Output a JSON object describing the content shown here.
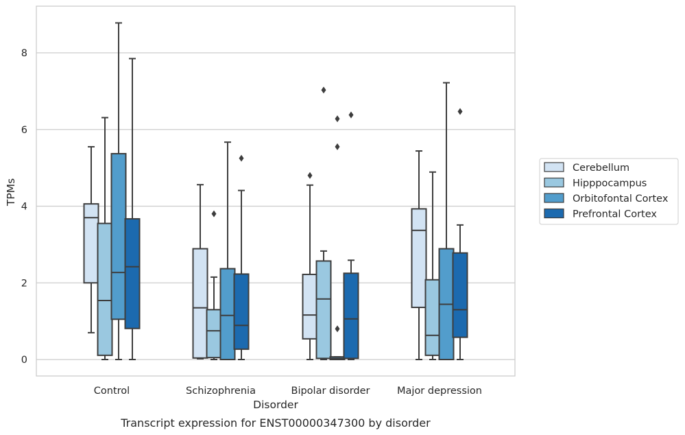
{
  "caption": "Transcript expression for ENST00000347300 by disorder",
  "chart_data": {
    "type": "box",
    "xlabel": "Disorder",
    "ylabel": "TPMs",
    "ylim": [
      -0.42,
      9.25
    ],
    "yticks": [
      0,
      2,
      4,
      6,
      8
    ],
    "grid": "horizontal",
    "legend_position": "right",
    "categories": [
      "Control",
      "Schizophrenia",
      "Bipolar disorder",
      "Major depression"
    ],
    "series": [
      {
        "name": "Cerebellum",
        "color": "#d2e3f3",
        "boxes": [
          {
            "min": 0.7,
            "q1": 2.0,
            "median": 3.7,
            "q3": 4.06,
            "max": 5.55,
            "outliers": []
          },
          {
            "min": 0.02,
            "q1": 0.04,
            "median": 1.35,
            "q3": 2.89,
            "max": 4.56,
            "outliers": []
          },
          {
            "min": 0.0,
            "q1": 0.54,
            "median": 1.16,
            "q3": 2.22,
            "max": 4.55,
            "outliers": [
              4.8
            ]
          },
          {
            "min": 0.0,
            "q1": 1.36,
            "median": 3.37,
            "q3": 3.93,
            "max": 5.44,
            "outliers": []
          }
        ]
      },
      {
        "name": "Hipppocampus",
        "color": "#9ac8e0",
        "boxes": [
          {
            "min": 0.0,
            "q1": 0.11,
            "median": 1.54,
            "q3": 3.55,
            "max": 6.31,
            "outliers": []
          },
          {
            "min": 0.0,
            "q1": 0.05,
            "median": 0.75,
            "q3": 1.3,
            "max": 2.15,
            "outliers": [
              3.8
            ]
          },
          {
            "min": 0.0,
            "q1": 0.03,
            "median": 1.58,
            "q3": 2.57,
            "max": 2.83,
            "outliers": [
              7.03
            ]
          },
          {
            "min": 0.0,
            "q1": 0.11,
            "median": 0.63,
            "q3": 2.08,
            "max": 4.89,
            "outliers": []
          }
        ]
      },
      {
        "name": "Orbitofontal Cortex",
        "color": "#529dcc",
        "boxes": [
          {
            "min": 0.0,
            "q1": 1.05,
            "median": 2.27,
            "q3": 5.37,
            "max": 8.78,
            "outliers": []
          },
          {
            "min": 0.0,
            "q1": 0.0,
            "median": 1.15,
            "q3": 2.37,
            "max": 5.67,
            "outliers": []
          },
          {
            "min": 0.0,
            "q1": 0.0,
            "median": 0.03,
            "q3": 0.07,
            "max": 0.07,
            "outliers": [
              0.8,
              5.55,
              6.28
            ]
          },
          {
            "min": 0.0,
            "q1": 0.0,
            "median": 1.44,
            "q3": 2.89,
            "max": 7.22,
            "outliers": []
          }
        ]
      },
      {
        "name": "Prefrontal Cortex",
        "color": "#1c6aaf",
        "boxes": [
          {
            "min": 0.0,
            "q1": 0.81,
            "median": 2.42,
            "q3": 3.67,
            "max": 7.85,
            "outliers": []
          },
          {
            "min": 0.0,
            "q1": 0.27,
            "median": 0.89,
            "q3": 2.23,
            "max": 4.41,
            "outliers": [
              5.25
            ]
          },
          {
            "min": 0.0,
            "q1": 0.03,
            "median": 1.06,
            "q3": 2.25,
            "max": 2.59,
            "outliers": [
              6.38
            ]
          },
          {
            "min": 0.0,
            "q1": 0.58,
            "median": 1.3,
            "q3": 2.78,
            "max": 3.51,
            "outliers": [
              6.47
            ]
          }
        ]
      }
    ]
  }
}
